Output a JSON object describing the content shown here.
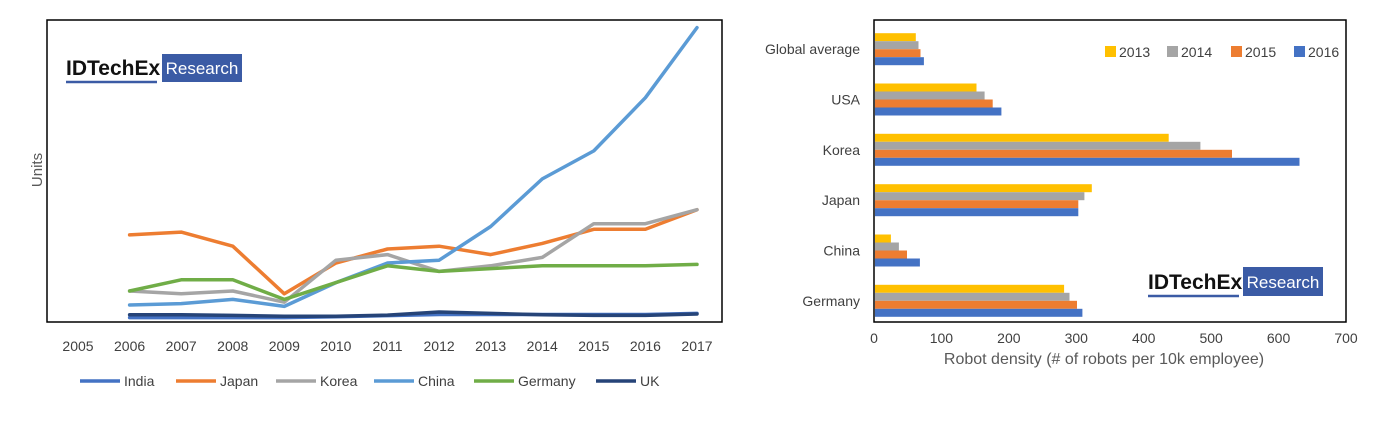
{
  "chart_data": [
    {
      "type": "line",
      "title": "",
      "ylabel": "Units",
      "xlabel": "",
      "x": [
        "2005",
        "2006",
        "2007",
        "2008",
        "2009",
        "2010",
        "2011",
        "2012",
        "2013",
        "2014",
        "2015",
        "2016",
        "2017"
      ],
      "ylim": [
        0,
        100
      ],
      "grid": false,
      "legend": "bottom",
      "series": [
        {
          "name": "India",
          "color": "#4472C4",
          "values": [
            null,
            0.5,
            0.5,
            0.5,
            0.5,
            0.8,
            1.2,
            1.6,
            1.6,
            1.6,
            1.6,
            1.6,
            2
          ]
        },
        {
          "name": "Japan",
          "color": "#ED7D31",
          "values": [
            null,
            30,
            31,
            26,
            9,
            20,
            25,
            26,
            23,
            27,
            32,
            32,
            39
          ]
        },
        {
          "name": "Korea",
          "color": "#A5A5A5",
          "values": [
            null,
            10,
            9,
            10,
            6,
            21,
            23,
            17,
            19,
            22,
            34,
            34,
            39
          ]
        },
        {
          "name": "China",
          "color": "#5B9BD5",
          "values": [
            null,
            5,
            5.5,
            7,
            4.5,
            13,
            20,
            21,
            33,
            50,
            60,
            79,
            104
          ]
        },
        {
          "name": "Germany",
          "color": "#70AD47",
          "values": [
            null,
            10,
            14,
            14,
            7,
            13,
            19,
            17,
            18,
            19,
            19,
            19,
            19.5
          ]
        },
        {
          "name": "UK",
          "color": "#264478",
          "values": [
            null,
            1.5,
            1.5,
            1.3,
            1,
            1,
            1.4,
            2.5,
            2,
            1.5,
            1.3,
            1.3,
            1.8
          ]
        }
      ]
    },
    {
      "type": "bar",
      "orientation": "horizontal",
      "title": "",
      "xlabel": "Robot density (# of robots per 10k employee)",
      "ylabel": "",
      "categories": [
        "Global average",
        "USA",
        "Korea",
        "Japan",
        "China",
        "Germany"
      ],
      "xlim": [
        0,
        700
      ],
      "xticks": [
        "0",
        "100",
        "200",
        "300",
        "400",
        "500",
        "600",
        "700"
      ],
      "grid": false,
      "legend": "top-right",
      "series": [
        {
          "name": "2013",
          "color": "#FFC000",
          "values": [
            62,
            152,
            437,
            323,
            25,
            282
          ]
        },
        {
          "name": "2014",
          "color": "#A5A5A5",
          "values": [
            66,
            164,
            484,
            312,
            37,
            290
          ]
        },
        {
          "name": "2015",
          "color": "#ED7D31",
          "values": [
            69,
            176,
            531,
            303,
            49,
            301
          ]
        },
        {
          "name": "2016",
          "color": "#4472C4",
          "values": [
            74,
            189,
            631,
            303,
            68,
            309
          ]
        }
      ]
    }
  ],
  "branding": {
    "name": "IDTechEx",
    "tag": "Research",
    "tag_bg": "#3B5BA5"
  }
}
